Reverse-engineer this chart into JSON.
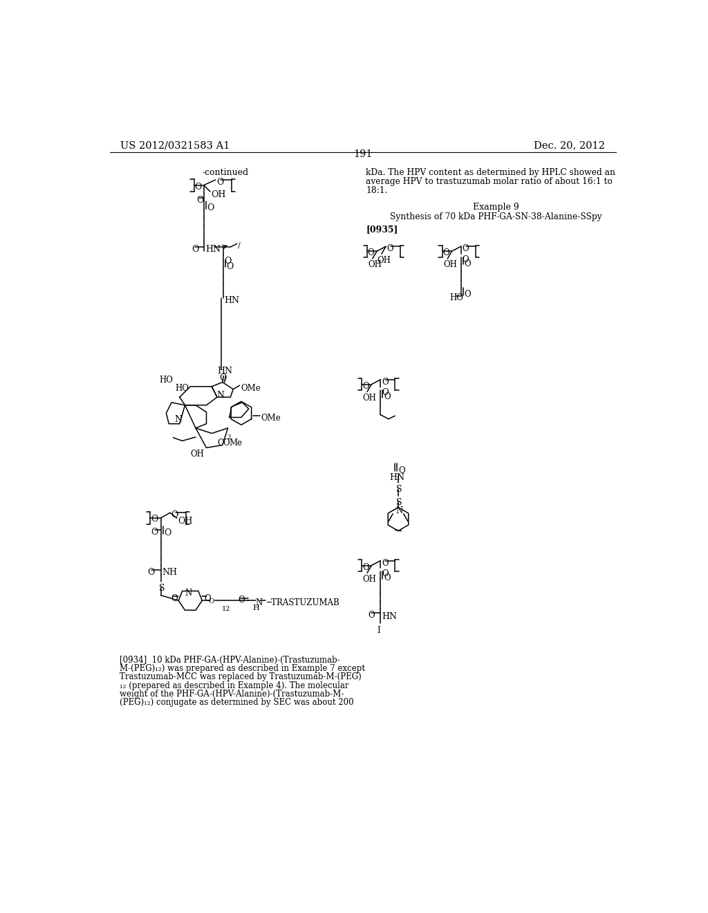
{
  "page_number": "191",
  "patent_number": "US 2012/0321583 A1",
  "patent_date": "Dec. 20, 2012",
  "background_color": "#ffffff",
  "continued_label": "-continued",
  "example9_title": "Example 9",
  "example9_subtitle": "Synthesis of 70 kDa PHF-GA-SN-38-Alanine-SSpy",
  "ref_0935": "[0935]",
  "ref_0934": "[0934]",
  "right_text_1": "kDa. The HPV content as determined by HPLC showed an",
  "right_text_2": "average HPV to trastuzumab molar ratio of about 16:1 to",
  "right_text_3": "18:1.",
  "left_text": "[0934]  10 kDa PHF-GA-(HPV-Alanine)-(Trastuzumab-\nM-(PEG)₁₂) was prepared as described in Example 7 except\nTrastuzumab-MCC was replaced by Trastuzumab-M-(PEG)\n₁₂ (prepared as described in Example 4). The molecular\nweight of the PHF-GA-(HPV-Alanine)-(Trastuzumab-M-\n(PEG)₁₂) conjugate as determined by SEC was about 200"
}
